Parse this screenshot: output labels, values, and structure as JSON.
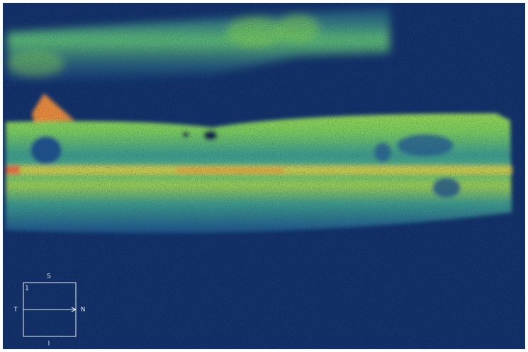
{
  "orientation": {
    "superior": "S",
    "temporal": "T",
    "nasal": "N",
    "inferior": "I",
    "scan_number": "1"
  }
}
